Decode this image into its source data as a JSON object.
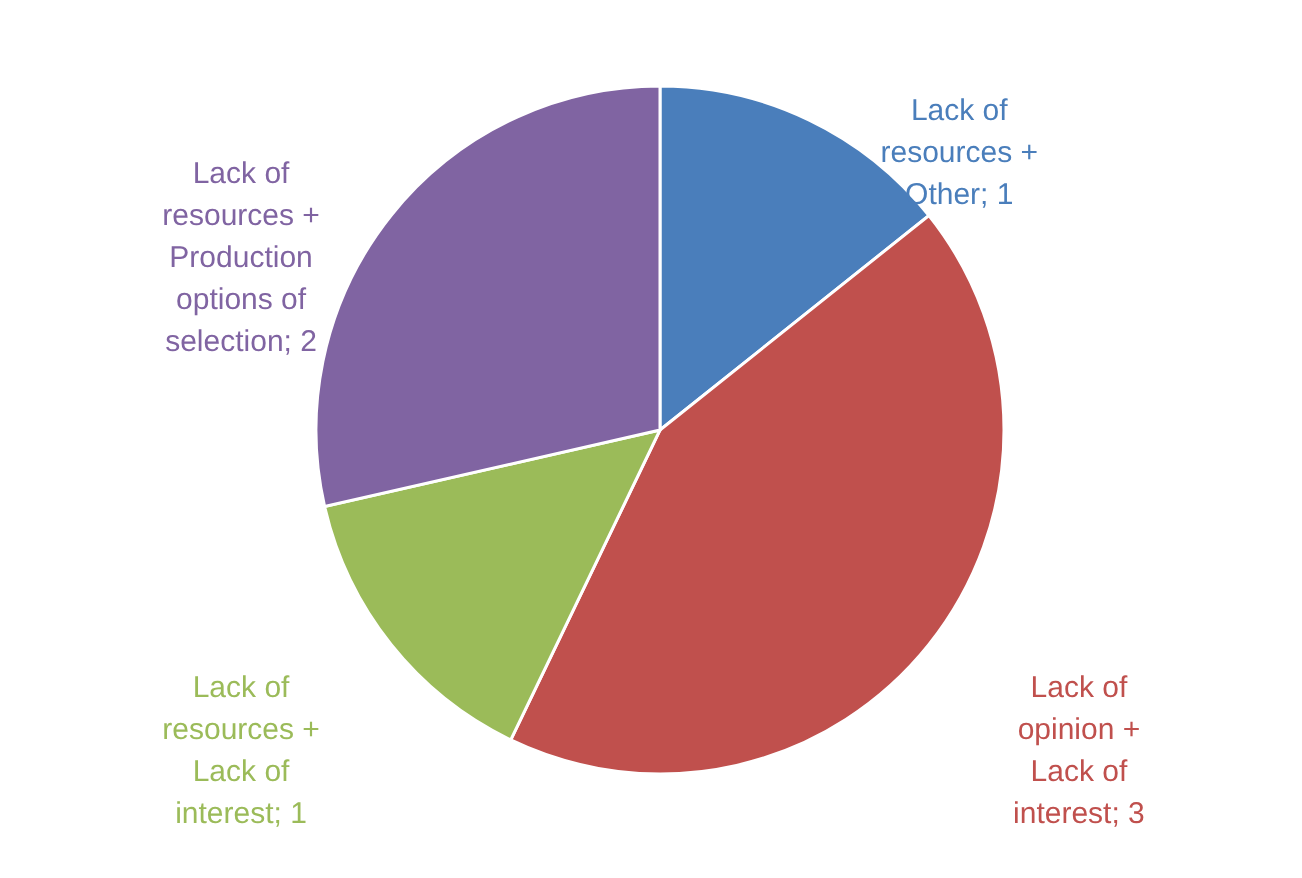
{
  "chart_data": {
    "type": "pie",
    "categories": [
      "Lack of resources + Other; 1",
      "Lack of opinion + Lack of interest; 3",
      "Lack of resources + Lack of interest; 1",
      "Lack of resources + Production options of selection; 2"
    ],
    "values": [
      1,
      3,
      1,
      2
    ],
    "colors": [
      "#4a7ebb",
      "#c0504d",
      "#9bbb59",
      "#8064a2"
    ]
  }
}
